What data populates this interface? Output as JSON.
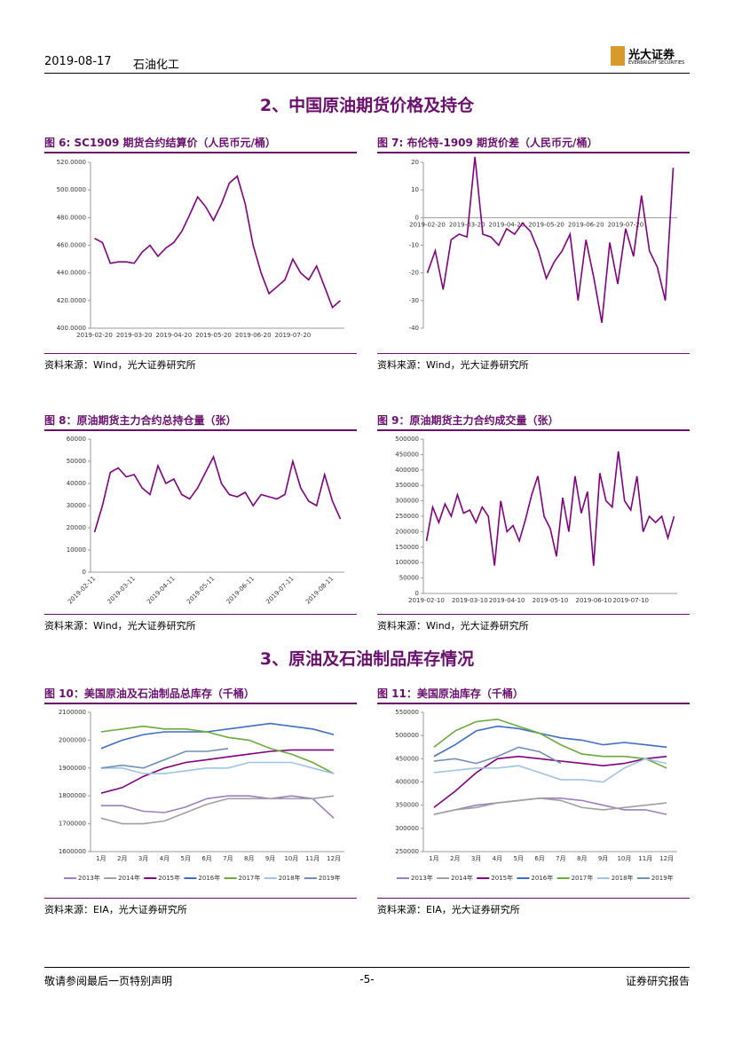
{
  "header": {
    "date": "2019-08-17",
    "sector": "石油化工",
    "logo": "光大证券",
    "logo_en": "EVERBRIGHT SECURITIES"
  },
  "sections": [
    "2、中国原油期货价格及持仓",
    "3、原油及石油制品库存情况"
  ],
  "figures": [
    {
      "title": "图 6:   SC1909 期货合约结算价（人民币元/桶）",
      "source": "资料来源：Wind，光大证券研究所",
      "chart": {
        "type": "line",
        "categories": [
          "2019-02-20",
          null,
          null,
          null,
          null,
          "2019-03-20",
          null,
          null,
          null,
          null,
          "2019-04-20",
          null,
          null,
          null,
          null,
          "2019-05-20",
          null,
          null,
          null,
          null,
          "2019-06-20",
          null,
          null,
          null,
          null,
          "2019-07-20",
          null,
          null,
          null,
          null,
          null,
          null
        ],
        "series": [
          {
            "color": "#800080",
            "values": [
              465,
              462,
              447,
              448,
              448,
              447,
              455,
              460,
              452,
              458,
              462,
              470,
              482,
              495,
              488,
              478,
              490,
              505,
              510,
              490,
              460,
              440,
              425,
              430,
              435,
              450,
              440,
              435,
              445,
              430,
              415,
              420
            ]
          }
        ],
        "ylim": [
          400,
          520
        ],
        "yticks": [
          {
            "value": 400,
            "label": "400.0000"
          },
          {
            "value": 420,
            "label": "420.0000"
          },
          {
            "value": 440,
            "label": "440.0000"
          },
          {
            "value": 460,
            "label": "460.0000"
          },
          {
            "value": 480,
            "label": "480.0000"
          },
          {
            "value": 500,
            "label": "500.0000"
          },
          {
            "value": 520,
            "label": "520.0000"
          }
        ]
      }
    },
    {
      "title": "图 7:   布伦特-1909 期货价差（人民币元/桶）",
      "source": "资料来源：Wind，光大证券研究所",
      "chart": {
        "type": "line",
        "categories": [
          "2019-02-20",
          null,
          null,
          null,
          null,
          "2019-03-20",
          null,
          null,
          null,
          null,
          "2019-04-20",
          null,
          null,
          null,
          null,
          "2019-05-20",
          null,
          null,
          null,
          null,
          "2019-06-20",
          null,
          null,
          null,
          null,
          "2019-07-20",
          null,
          null,
          null,
          null,
          null,
          null
        ],
        "series": [
          {
            "color": "#800080",
            "values": [
              -20,
              -12,
              -26,
              -8,
              -6,
              -7,
              22,
              -6,
              -7,
              -10,
              -4,
              -6,
              -2,
              -5,
              -12,
              -22,
              -16,
              -12,
              -6,
              -30,
              -8,
              -22,
              -38,
              -9,
              -24,
              -4,
              -14,
              8,
              -12,
              -18,
              -30,
              18
            ]
          }
        ],
        "ylim": [
          -40,
          20
        ],
        "yticks": [
          -40,
          -30,
          -20,
          -10,
          0,
          10,
          20
        ],
        "x_labels_at_zero": true
      }
    },
    {
      "title": "图 8：原油期货主力合约总持仓量（张）",
      "source": "资料来源：Wind，光大证券研究所",
      "chart": {
        "type": "line",
        "categories": [
          "2019-02-11",
          null,
          null,
          null,
          null,
          "2019-03-11",
          null,
          null,
          null,
          null,
          "2019-04-11",
          null,
          null,
          null,
          null,
          "2019-05-11",
          null,
          null,
          null,
          null,
          "2019-06-11",
          null,
          null,
          null,
          null,
          "2019-07-11",
          null,
          null,
          null,
          null,
          "2019-08-11",
          null
        ],
        "series": [
          {
            "color": "#800080",
            "values": [
              18000,
              30000,
              45000,
              47000,
              43000,
              44000,
              38000,
              35000,
              48000,
              40000,
              42000,
              35000,
              33000,
              38000,
              45000,
              52000,
              40000,
              35000,
              34000,
              36000,
              30000,
              35000,
              34000,
              33000,
              35000,
              50000,
              38000,
              32000,
              30000,
              44000,
              32000,
              24000
            ]
          }
        ],
        "ylim": [
          0,
          60000
        ],
        "yticks": [
          0,
          10000,
          20000,
          30000,
          40000,
          50000,
          60000
        ],
        "x_labels_rotated": true
      }
    },
    {
      "title": "图 9：原油期货主力合约成交量（张）",
      "source": "资料来源：Wind，光大证券研究所",
      "chart": {
        "type": "line",
        "categories": [
          "2019-02-10",
          null,
          null,
          null,
          null,
          null,
          null,
          "2019-03-10",
          null,
          null,
          null,
          null,
          null,
          "2019-04-10",
          null,
          null,
          null,
          null,
          null,
          null,
          "2019-05-10",
          null,
          null,
          null,
          null,
          null,
          null,
          "2019-06-10",
          null,
          null,
          null,
          null,
          null,
          "2019-07-10",
          null,
          null,
          null,
          null,
          null,
          null,
          null
        ],
        "series": [
          {
            "color": "#800080",
            "values": [
              170000,
              280000,
              230000,
              290000,
              250000,
              320000,
              260000,
              270000,
              230000,
              280000,
              250000,
              90000,
              300000,
              200000,
              220000,
              170000,
              240000,
              320000,
              380000,
              250000,
              210000,
              120000,
              310000,
              200000,
              380000,
              260000,
              330000,
              90000,
              390000,
              300000,
              280000,
              460000,
              300000,
              270000,
              380000,
              200000,
              250000,
              230000,
              250000,
              180000,
              250000
            ]
          }
        ],
        "ylim": [
          0,
          500000
        ],
        "yticks": [
          0,
          50000,
          100000,
          150000,
          200000,
          250000,
          300000,
          350000,
          400000,
          450000,
          500000
        ]
      }
    },
    {
      "title": "图 10：美国原油及石油制品总库存（千桶）",
      "source": "资料来源：EIA，光大证券研究所",
      "chart": {
        "type": "line",
        "categories": [
          "1月",
          "2月",
          "3月",
          "4月",
          "5月",
          "6月",
          "7月",
          "8月",
          "9月",
          "10月",
          "11月",
          "12月"
        ],
        "series": [
          {
            "name": "2013年",
            "color": "#9b7fc0",
            "values": [
              1765000,
              1765000,
              1745000,
              1740000,
              1760000,
              1790000,
              1800000,
              1800000,
              1790000,
              1800000,
              1790000,
              1720000
            ]
          },
          {
            "name": "2014年",
            "color": "#a0a0a0",
            "values": [
              1720000,
              1700000,
              1700000,
              1710000,
              1740000,
              1770000,
              1790000,
              1790000,
              1790000,
              1790000,
              1790000,
              1800000
            ]
          },
          {
            "name": "2015年",
            "color": "#800080",
            "values": [
              1810000,
              1830000,
              1870000,
              1900000,
              1920000,
              1930000,
              1940000,
              1950000,
              1960000,
              1965000,
              1965000,
              1965000
            ]
          },
          {
            "name": "2016年",
            "color": "#3c6fc4",
            "values": [
              1970000,
              2000000,
              2020000,
              2030000,
              2030000,
              2030000,
              2040000,
              2050000,
              2060000,
              2050000,
              2040000,
              2020000
            ]
          },
          {
            "name": "2017年",
            "color": "#6aaa3a",
            "values": [
              2030000,
              2040000,
              2050000,
              2040000,
              2040000,
              2030000,
              2010000,
              2000000,
              1970000,
              1950000,
              1920000,
              1880000
            ]
          },
          {
            "name": "2018年",
            "color": "#9dc3e6",
            "values": [
              1900000,
              1900000,
              1880000,
              1880000,
              1890000,
              1900000,
              1900000,
              1920000,
              1920000,
              1920000,
              1900000,
              1880000
            ]
          },
          {
            "name": "2019年",
            "color": "#6f8fb8",
            "values": [
              1900000,
              1910000,
              1900000,
              1930000,
              1960000,
              1960000,
              1970000,
              null,
              null,
              null,
              null,
              null
            ]
          }
        ],
        "ylim": [
          1600000,
          2100000
        ],
        "yticks": [
          1600000,
          1700000,
          1800000,
          1900000,
          2000000,
          2100000
        ],
        "legend": "bottom"
      }
    },
    {
      "title": "图 11：美国原油库存（千桶）",
      "source": "资料来源：EIA，光大证券研究所",
      "chart": {
        "type": "line",
        "categories": [
          "1月",
          "2月",
          "3月",
          "4月",
          "5月",
          "6月",
          "7月",
          "8月",
          "9月",
          "10月",
          "11月",
          "12月"
        ],
        "series": [
          {
            "name": "2013年",
            "color": "#9b7fc0",
            "values": [
              330000,
              340000,
              350000,
              355000,
              360000,
              365000,
              365000,
              360000,
              350000,
              340000,
              340000,
              330000
            ]
          },
          {
            "name": "2014年",
            "color": "#a0a0a0",
            "values": [
              330000,
              340000,
              345000,
              355000,
              360000,
              365000,
              360000,
              345000,
              340000,
              345000,
              350000,
              355000
            ]
          },
          {
            "name": "2015年",
            "color": "#800080",
            "values": [
              345000,
              380000,
              420000,
              450000,
              455000,
              450000,
              445000,
              440000,
              435000,
              440000,
              450000,
              455000
            ]
          },
          {
            "name": "2016年",
            "color": "#3c6fc4",
            "values": [
              455000,
              480000,
              510000,
              520000,
              515000,
              505000,
              495000,
              490000,
              480000,
              485000,
              480000,
              475000
            ]
          },
          {
            "name": "2017年",
            "color": "#6aaa3a",
            "values": [
              475000,
              510000,
              530000,
              535000,
              520000,
              505000,
              480000,
              460000,
              455000,
              455000,
              450000,
              430000
            ]
          },
          {
            "name": "2018年",
            "color": "#9dc3e6",
            "values": [
              420000,
              425000,
              430000,
              430000,
              435000,
              420000,
              405000,
              405000,
              400000,
              430000,
              450000,
              440000
            ]
          },
          {
            "name": "2019年",
            "color": "#6f8fb8",
            "values": [
              445000,
              450000,
              440000,
              455000,
              475000,
              465000,
              440000,
              null,
              null,
              null,
              null,
              null
            ]
          }
        ],
        "ylim": [
          250000,
          550000
        ],
        "yticks": [
          250000,
          300000,
          350000,
          400000,
          450000,
          500000,
          550000
        ],
        "legend": "bottom"
      }
    }
  ],
  "footer": {
    "left": "敬请参阅最后一页特别声明",
    "page": "-5-",
    "right": "证券研究报告"
  }
}
